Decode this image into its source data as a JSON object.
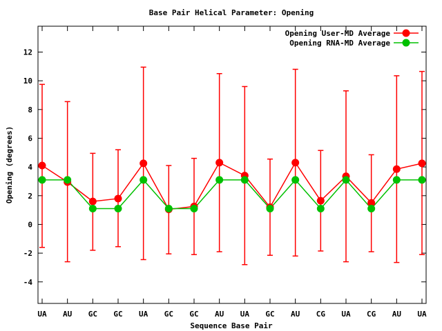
{
  "chart_data": {
    "type": "line",
    "title": "Base Pair Helical Parameter: Opening",
    "xlabel": "Sequence Base Pair",
    "ylabel": "Opening (degrees)",
    "ylim": [
      -5.5,
      13.8
    ],
    "yticks": [
      -4,
      -2,
      0,
      2,
      4,
      6,
      8,
      10,
      12
    ],
    "grid": false,
    "legend_position": "top-right",
    "categories": [
      "UA",
      "AU",
      "GC",
      "GC",
      "UA",
      "GC",
      "GC",
      "AU",
      "UA",
      "GC",
      "AU",
      "CG",
      "UA",
      "CG",
      "AU",
      "UA"
    ],
    "series": [
      {
        "name": "Opening User-MD Average",
        "color": "#ff0000",
        "values": [
          4.1,
          2.95,
          1.6,
          1.8,
          4.25,
          1.05,
          1.25,
          4.3,
          3.4,
          1.2,
          4.3,
          1.65,
          3.35,
          1.5,
          3.85,
          4.25
        ],
        "error_low": [
          -1.6,
          -2.6,
          -1.8,
          -1.55,
          -2.45,
          -2.05,
          -2.1,
          -1.9,
          -2.8,
          -2.15,
          -2.2,
          -1.85,
          -2.6,
          -1.9,
          -2.65,
          -2.1
        ],
        "error_high": [
          9.75,
          8.55,
          4.95,
          5.2,
          10.95,
          4.1,
          4.6,
          10.5,
          9.6,
          4.55,
          10.8,
          5.15,
          9.3,
          4.85,
          10.35,
          10.65
        ]
      },
      {
        "name": "Opening RNA-MD Average",
        "color": "#00c000",
        "values": [
          3.1,
          3.1,
          1.1,
          1.1,
          3.1,
          1.1,
          1.1,
          3.1,
          3.1,
          1.1,
          3.1,
          1.1,
          3.1,
          1.1,
          3.1,
          3.1
        ]
      }
    ]
  }
}
